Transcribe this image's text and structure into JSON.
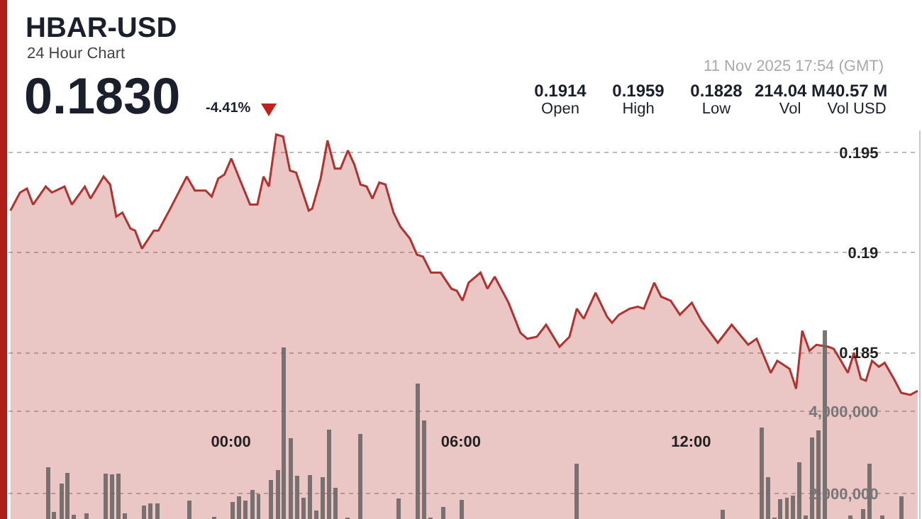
{
  "chart_data": {
    "type": "area",
    "title": "HBAR-USD",
    "subtitle": "24 Hour Chart",
    "annotations": [
      "0.1830",
      "-4.41%",
      "0.1914",
      "Open",
      "0.1959",
      "High",
      "0.1828",
      "Low",
      "214.04 M",
      "Vol",
      "40.57 M",
      "Vol USD",
      "11 Nov 2025 17:54 (GMT)"
    ],
    "xlim": [
      -5.8,
      17.95
    ],
    "xticks": [
      {
        "value": 0,
        "label": "00:00"
      },
      {
        "value": 6,
        "label": "06:00"
      },
      {
        "value": 12,
        "label": "12:00"
      }
    ],
    "ylim": [
      0.1767,
      0.1961
    ],
    "yticks": [
      0.185,
      0.19,
      0.195
    ],
    "y2lim": [
      1390000,
      10790000
    ],
    "y2ticks": [
      {
        "value": 2000000,
        "label": "2,000,000"
      },
      {
        "value": 4000000,
        "label": "4,000,000"
      }
    ],
    "grid": "y",
    "series": [
      {
        "color": "#b3312e",
        "x": [
          -5.75,
          -5.5,
          -5.32,
          -5.16,
          -4.83,
          -4.67,
          -4.34,
          -4.15,
          -3.81,
          -3.66,
          -3.32,
          -3.15,
          -2.99,
          -2.83,
          -2.62,
          -2.5,
          -2.32,
          -2.01,
          -1.89,
          -1.58,
          -1.15,
          -0.94,
          -0.66,
          -0.5,
          -0.33,
          -0.17,
          0.01,
          0.2,
          0.5,
          0.69,
          0.85,
          0.99,
          1.18,
          1.36,
          1.54,
          1.7,
          2.03,
          2.12,
          2.34,
          2.52,
          2.71,
          2.86,
          3.05,
          3.22,
          3.38,
          3.54,
          3.69,
          3.87,
          4.03,
          4.24,
          4.42,
          4.67,
          4.85,
          5.01,
          5.22,
          5.47,
          5.75,
          5.89,
          6.04,
          6.2,
          6.51,
          6.69,
          6.88,
          7.24,
          7.55,
          7.73,
          7.98,
          8.22,
          8.57,
          8.83,
          9.02,
          9.2,
          9.51,
          9.81,
          9.94,
          10.12,
          10.4,
          10.61,
          10.77,
          11.04,
          11.22,
          11.47,
          11.71,
          12.02,
          12.27,
          12.7,
          13.06,
          13.49,
          13.71,
          14.08,
          14.25,
          14.57,
          14.74,
          14.9,
          15.09,
          15.27,
          15.58,
          15.72,
          15.88,
          16.09,
          16.25,
          16.43,
          16.56,
          16.72,
          16.9,
          17.05,
          17.29,
          17.48,
          17.72,
          17.91
        ],
        "values": [
          0.1921,
          0.193,
          0.1932,
          0.1924,
          0.1933,
          0.193,
          0.1933,
          0.1924,
          0.1933,
          0.1927,
          0.1938,
          0.1934,
          0.1918,
          0.192,
          0.1912,
          0.1911,
          0.1902,
          0.1911,
          0.1911,
          0.1922,
          0.1938,
          0.1931,
          0.1931,
          0.1928,
          0.1937,
          0.1939,
          0.1947,
          0.1938,
          0.1924,
          0.1924,
          0.1938,
          0.1933,
          0.1959,
          0.1958,
          0.1941,
          0.194,
          0.1921,
          0.1922,
          0.1937,
          0.1956,
          0.1942,
          0.1942,
          0.1951,
          0.1944,
          0.1934,
          0.1933,
          0.1927,
          0.1935,
          0.1934,
          0.192,
          0.1913,
          0.1907,
          0.1899,
          0.1898,
          0.189,
          0.189,
          0.1882,
          0.1881,
          0.1876,
          0.1885,
          0.189,
          0.1882,
          0.1888,
          0.1875,
          0.186,
          0.1857,
          0.1858,
          0.1864,
          0.1853,
          0.1858,
          0.1872,
          0.1867,
          0.188,
          0.1868,
          0.1865,
          0.1869,
          0.1872,
          0.1873,
          0.1872,
          0.1885,
          0.1878,
          0.1876,
          0.1869,
          0.1875,
          0.1866,
          0.1855,
          0.1864,
          0.1854,
          0.1857,
          0.184,
          0.1846,
          0.1842,
          0.1832,
          0.1861,
          0.1851,
          0.1854,
          0.1853,
          0.1852,
          0.1847,
          0.184,
          0.185,
          0.1837,
          0.1836,
          0.1846,
          0.1843,
          0.1845,
          0.1837,
          0.183,
          0.1829,
          0.1831
        ]
      },
      {
        "type": "bar",
        "axis": "y2",
        "color": "#6b6766",
        "x": [
          -4.77,
          -4.61,
          -4.42,
          -4.26,
          -4.09,
          -3.76,
          -3.27,
          -3.1,
          -2.93,
          -2.76,
          -2.27,
          -2.1,
          -1.92,
          -1.09,
          -0.44,
          0.05,
          0.22,
          0.38,
          0.56,
          0.72,
          1.05,
          1.23,
          1.38,
          1.56,
          1.73,
          1.89,
          2.06,
          2.22,
          2.39,
          2.56,
          2.72,
          3.05,
          3.38,
          4.38,
          4.87,
          5.04,
          5.2,
          5.53,
          6.02,
          9.02,
          12.82,
          13.84,
          14.01,
          14.17,
          14.33,
          14.5,
          14.66,
          14.82,
          14.99,
          15.15,
          15.32,
          15.49,
          16.16,
          16.49,
          16.65,
          16.99,
          17.48
        ],
        "values": [
          2650000,
          1570000,
          2250000,
          2500000,
          1500000,
          1530000,
          2480000,
          2470000,
          2480000,
          1530000,
          1720000,
          1760000,
          1760000,
          1830000,
          1450000,
          1800000,
          1940000,
          1830000,
          2090000,
          1990000,
          2330000,
          2570000,
          5540000,
          3350000,
          2430000,
          1910000,
          2450000,
          1600000,
          2410000,
          3560000,
          2140000,
          1420000,
          3450000,
          1880000,
          4670000,
          3770000,
          1420000,
          1680000,
          1850000,
          2720000,
          1620000,
          3610000,
          2410000,
          1420000,
          1870000,
          1910000,
          1960000,
          2770000,
          1480000,
          3370000,
          3540000,
          5960000,
          1480000,
          1630000,
          2720000,
          1480000,
          1940000
        ]
      }
    ]
  }
}
